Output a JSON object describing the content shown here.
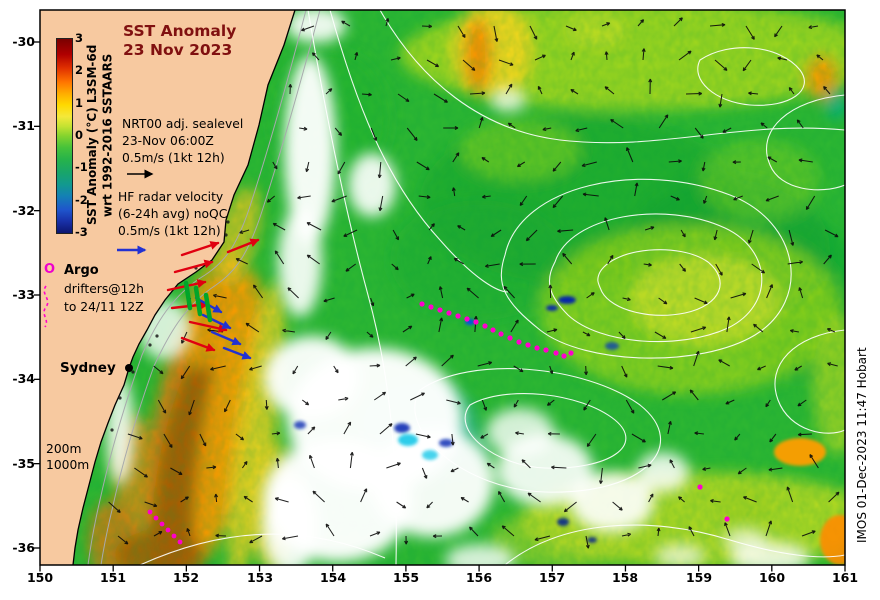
{
  "title": {
    "line1": "SST Anomaly",
    "line2": "23 Nov 2023"
  },
  "colorbar": {
    "label_line1": "SST Anomaly (°C) L3SM-6d",
    "label_line2": "wrt 1992-2016 SSTAARS",
    "ticks": [
      "3",
      "2",
      "1",
      "0",
      "-1",
      "-2",
      "-3"
    ],
    "range": [
      -3,
      3
    ],
    "units": "°C"
  },
  "legend": {
    "sealevel": {
      "l1": "NRT00 adj. sealevel",
      "l2": "23-Nov 06:00Z",
      "l3": "0.5m/s (1kt 12h)"
    },
    "hf_radar": {
      "l1": "HF radar velocity",
      "l2": "(6-24h avg) noQC",
      "l3": "0.5m/s (1kt 12h)"
    },
    "argo": {
      "symbol": "O",
      "label": "Argo",
      "l2": "drifters@12h",
      "l3": "to 24/11 12Z"
    },
    "bathymetry": {
      "d200": "200m",
      "d1000": "1000m"
    }
  },
  "map": {
    "city_label": "Sydney"
  },
  "axes": {
    "x_label_values": [
      "150",
      "151",
      "152",
      "153",
      "154",
      "155",
      "156",
      "157",
      "158",
      "159",
      "160",
      "161"
    ],
    "y_label_values": [
      "-30",
      "-31",
      "-32",
      "-33",
      "-34",
      "-35",
      "-36"
    ]
  },
  "credit": "IMOS 01-Dec-2023 11:47 Hobart",
  "colors": {
    "land": "#f7c9a0",
    "anomaly_max": "#7a0000",
    "anomaly_zero": "#57c838",
    "anomaly_min": "#0d1670",
    "drifter": "#ff00cc",
    "hf_red": "#e00010",
    "hf_blue": "#2232d2",
    "hf_green": "#00a52a"
  }
}
